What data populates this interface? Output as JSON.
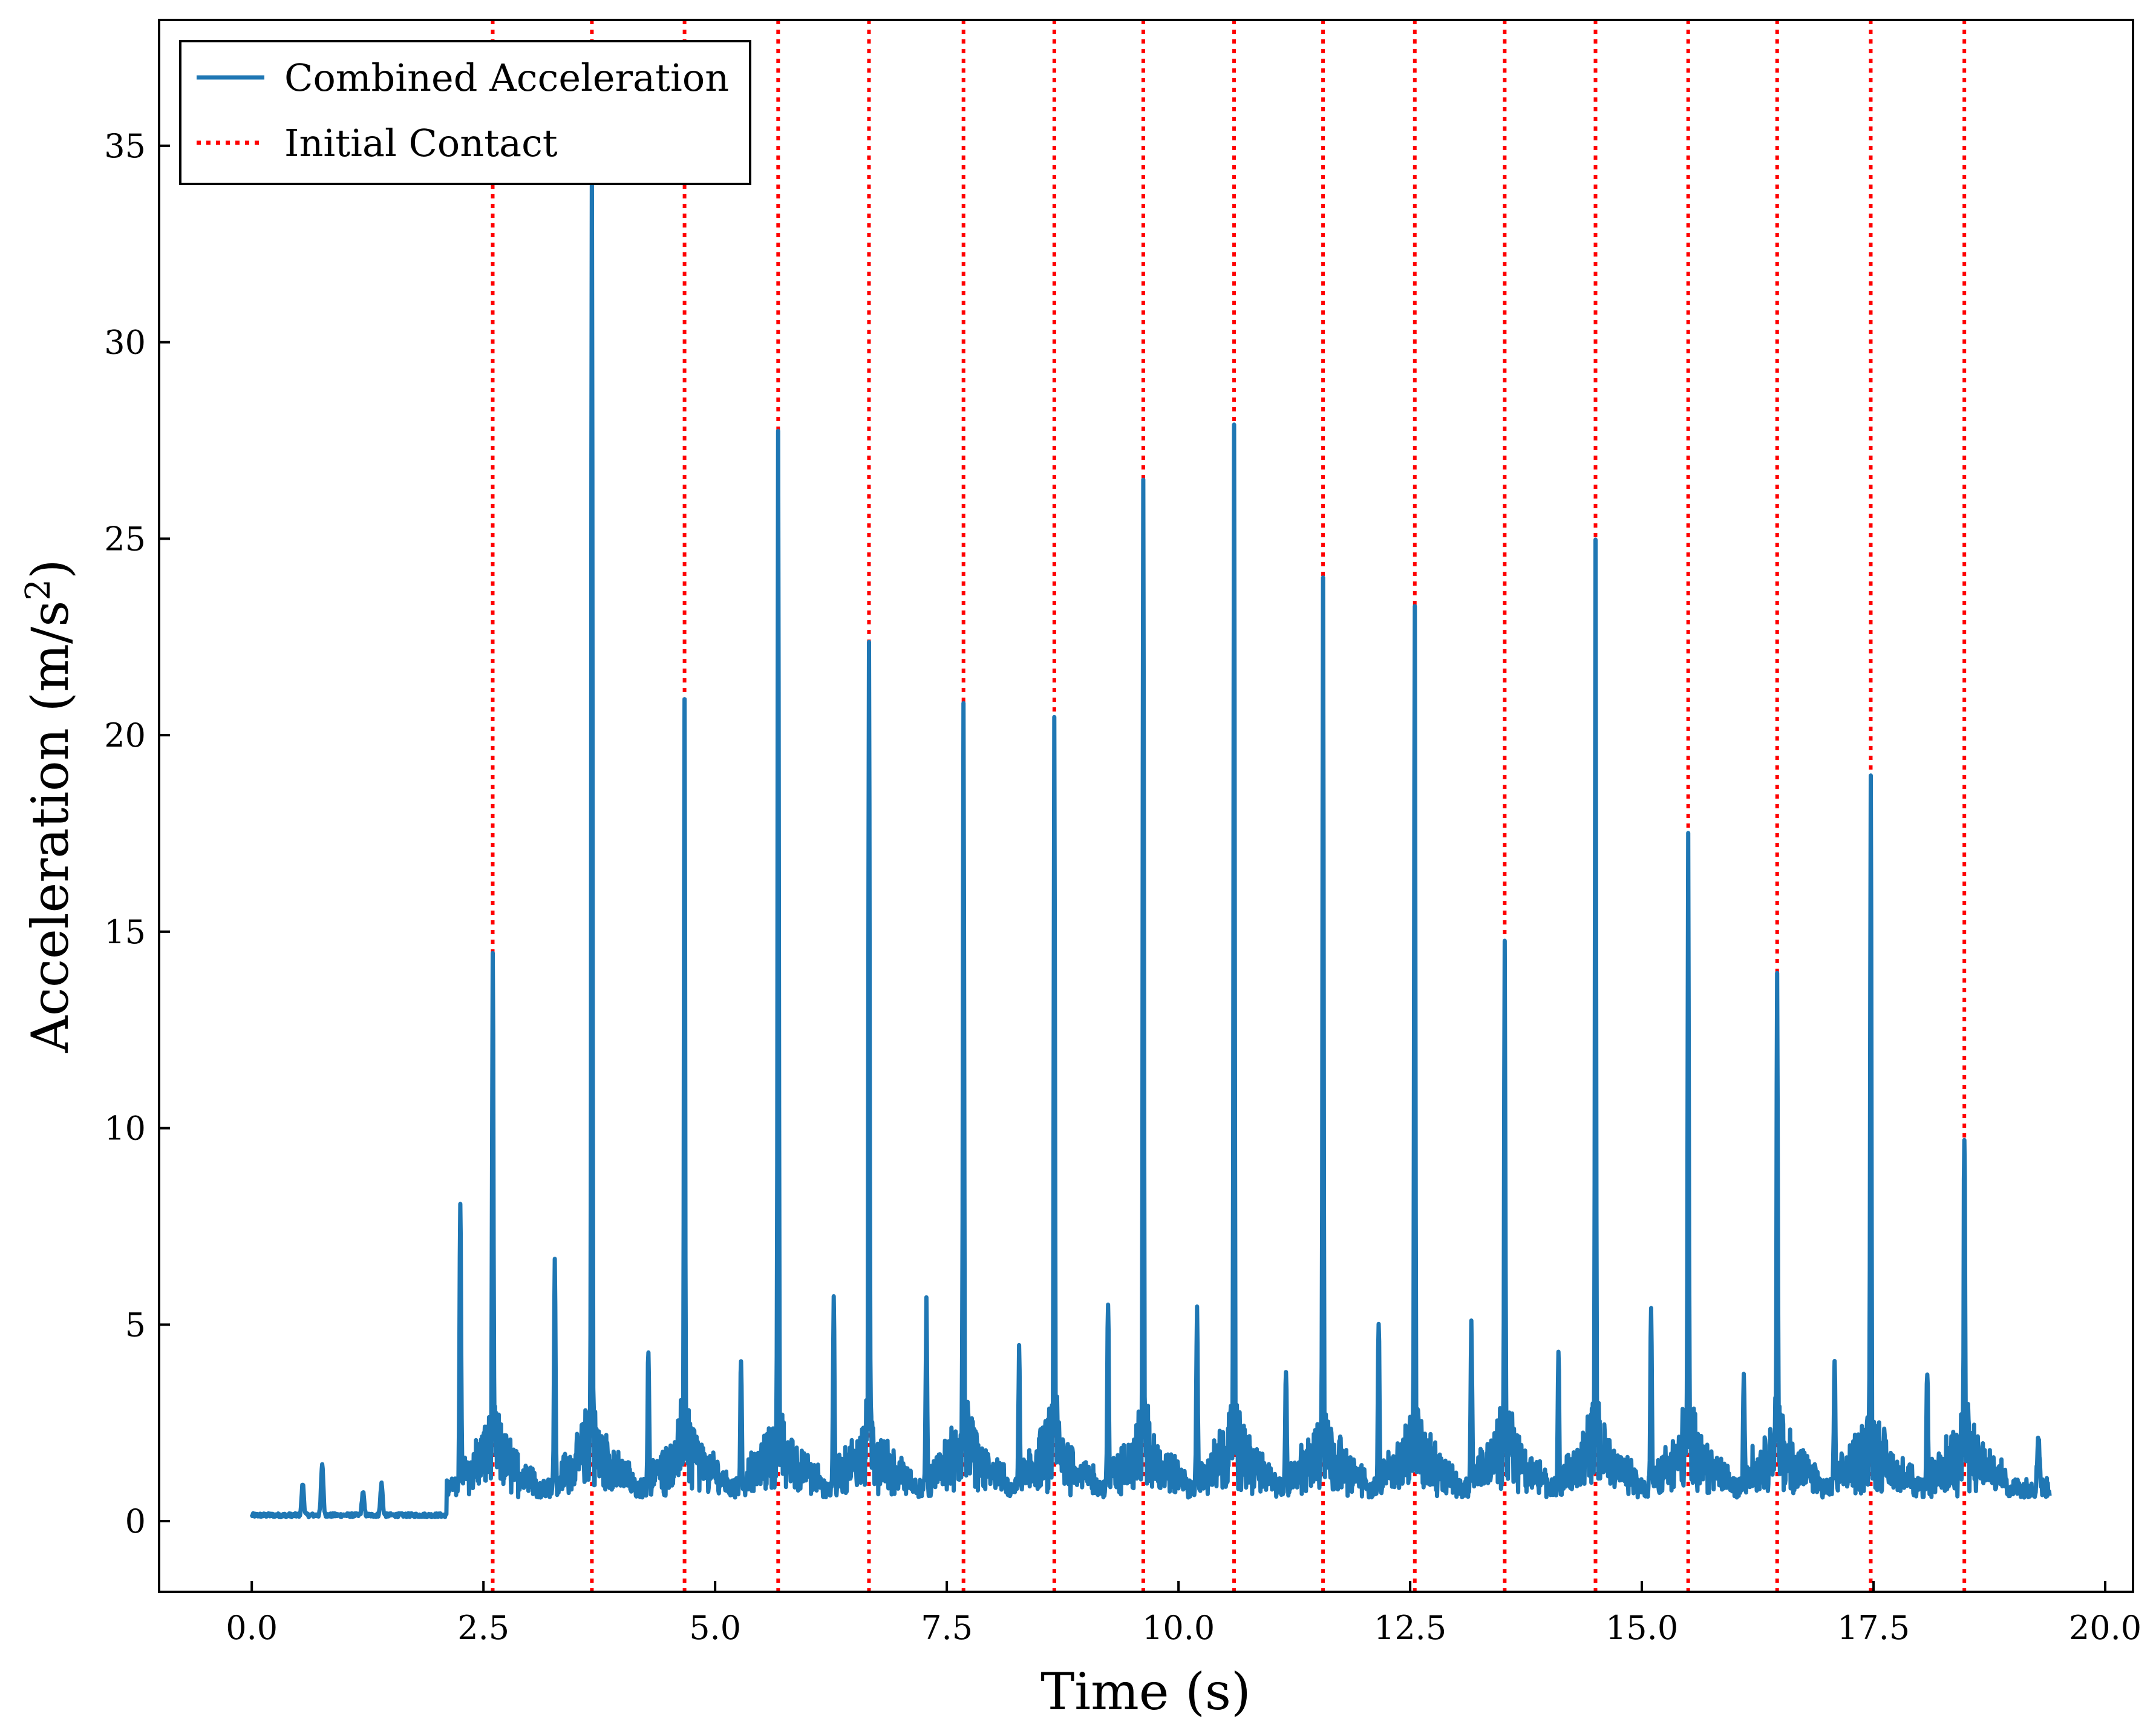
{
  "chart_data": {
    "type": "line",
    "title": "",
    "xlabel": "Time (s)",
    "ylabel_main": "Acceleration (m/s",
    "ylabel_sup": "2",
    "ylabel_close": ")",
    "xlim": [
      -1.0,
      20.3
    ],
    "ylim": [
      -1.8,
      38.2
    ],
    "xticks": [
      0.0,
      2.5,
      5.0,
      7.5,
      10.0,
      12.5,
      15.0,
      17.5,
      20.0
    ],
    "xtick_labels": [
      "0.0",
      "2.5",
      "5.0",
      "7.5",
      "10.0",
      "12.5",
      "15.0",
      "17.5",
      "20.0"
    ],
    "yticks": [
      0,
      5,
      10,
      15,
      20,
      25,
      30,
      35
    ],
    "ytick_labels": [
      "0",
      "5",
      "10",
      "15",
      "20",
      "25",
      "30",
      "35"
    ],
    "legend": {
      "location": "upper-left",
      "entries": [
        {
          "label": "Combined Acceleration",
          "style": "solid",
          "color": "#1f77b4"
        },
        {
          "label": "Initial Contact",
          "style": "dotted",
          "color": "#ff0000"
        }
      ]
    },
    "series": [
      {
        "name": "Combined Acceleration",
        "color": "#1f77b4",
        "x_end": 19.4,
        "baseline_before_walk": 0.15,
        "baseline_during_walk": 0.6,
        "walk_start": 2.1,
        "heel_strikes": [
          {
            "t": 2.6,
            "peak": 13.9
          },
          {
            "t": 3.67,
            "peak": 34.3
          },
          {
            "t": 4.67,
            "peak": 20.1
          },
          {
            "t": 5.68,
            "peak": 26.1
          },
          {
            "t": 6.66,
            "peak": 22.0
          },
          {
            "t": 7.68,
            "peak": 20.1
          },
          {
            "t": 8.66,
            "peak": 19.5
          },
          {
            "t": 9.62,
            "peak": 24.8
          },
          {
            "t": 10.6,
            "peak": 27.4
          },
          {
            "t": 11.56,
            "peak": 23.6
          },
          {
            "t": 12.55,
            "peak": 22.6
          },
          {
            "t": 13.52,
            "peak": 13.8
          },
          {
            "t": 14.5,
            "peak": 23.6
          },
          {
            "t": 15.5,
            "peak": 15.9
          },
          {
            "t": 16.46,
            "peak": 12.9
          },
          {
            "t": 17.47,
            "peak": 18.3
          },
          {
            "t": 18.48,
            "peak": 9.4
          }
        ],
        "secondary_peaks": [
          {
            "t": 2.25,
            "peak": 8.9
          },
          {
            "t": 3.27,
            "peak": 7.3
          },
          {
            "t": 4.28,
            "peak": 5.1
          },
          {
            "t": 5.28,
            "peak": 4.9
          },
          {
            "t": 6.28,
            "peak": 6.2
          },
          {
            "t": 7.28,
            "peak": 6.1
          },
          {
            "t": 8.28,
            "peak": 4.9
          },
          {
            "t": 9.24,
            "peak": 6.4
          },
          {
            "t": 10.2,
            "peak": 6.1
          },
          {
            "t": 11.16,
            "peak": 4.5
          },
          {
            "t": 12.16,
            "peak": 5.9
          },
          {
            "t": 13.16,
            "peak": 5.7
          },
          {
            "t": 14.1,
            "peak": 4.9
          },
          {
            "t": 15.1,
            "peak": 6.2
          },
          {
            "t": 16.1,
            "peak": 4.3
          },
          {
            "t": 17.08,
            "peak": 4.7
          },
          {
            "t": 18.08,
            "peak": 4.6
          }
        ],
        "pre_walk_bumps": [
          {
            "t": 0.55,
            "peak": 1.0
          },
          {
            "t": 0.76,
            "peak": 1.5
          },
          {
            "t": 1.2,
            "peak": 0.8
          },
          {
            "t": 1.4,
            "peak": 1.0
          },
          {
            "t": 19.28,
            "peak": 1.6
          }
        ]
      }
    ],
    "initial_contacts": [
      2.6,
      3.67,
      4.67,
      5.68,
      6.66,
      7.68,
      8.66,
      9.62,
      10.6,
      11.56,
      12.55,
      13.52,
      14.5,
      15.5,
      16.46,
      17.47,
      18.48
    ],
    "grid": false
  }
}
